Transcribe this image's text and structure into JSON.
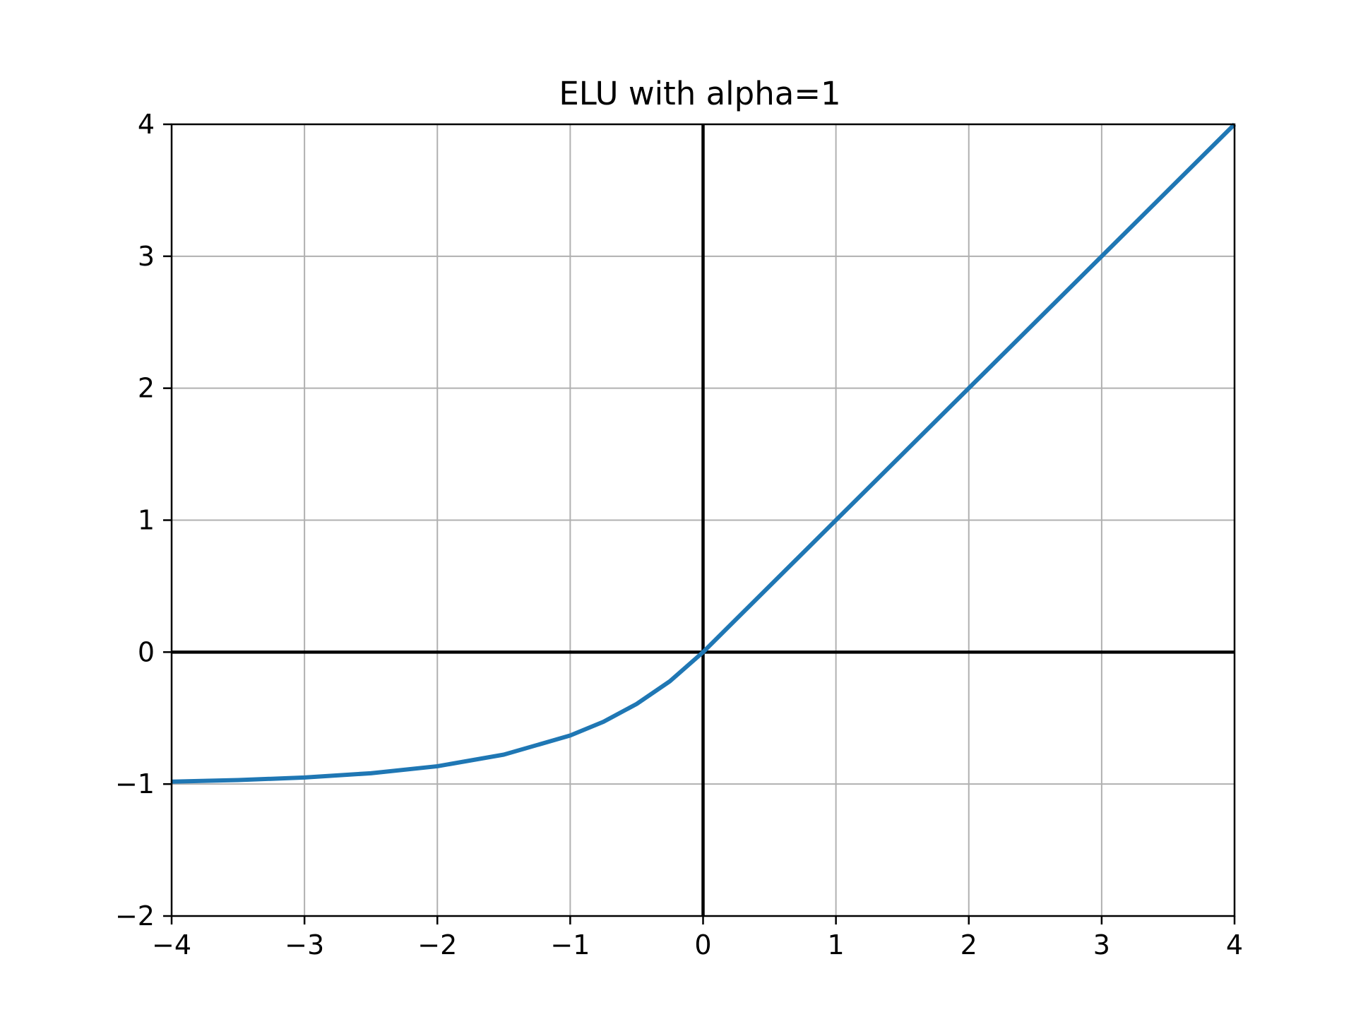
{
  "chart_data": {
    "type": "line",
    "title": "ELU with alpha=1",
    "xlabel": "",
    "ylabel": "",
    "xlim": [
      -4,
      4
    ],
    "ylim": [
      -2,
      4
    ],
    "x_ticks": [
      -4,
      -3,
      -2,
      -1,
      0,
      1,
      2,
      3,
      4
    ],
    "y_ticks": [
      -2,
      -1,
      0,
      1,
      2,
      3,
      4
    ],
    "x_tick_labels": [
      "−4",
      "−3",
      "−2",
      "−1",
      "0",
      "1",
      "2",
      "3",
      "4"
    ],
    "y_tick_labels": [
      "−2",
      "−1",
      "0",
      "1",
      "2",
      "3",
      "4"
    ],
    "grid": true,
    "reference_lines": {
      "x": 0,
      "y": 0
    },
    "colors": {
      "line": "#1f77b4",
      "grid": "#b0b0b0",
      "axes": "#000000",
      "reference": "#000000"
    },
    "series": [
      {
        "x": [
          -4,
          -3.5,
          -3,
          -2.5,
          -2,
          -1.5,
          -1,
          -0.75,
          -0.5,
          -0.25,
          0,
          1,
          2,
          3,
          4
        ],
        "y": [
          -0.982,
          -0.97,
          -0.95,
          -0.918,
          -0.865,
          -0.777,
          -0.632,
          -0.528,
          -0.393,
          -0.221,
          0,
          1,
          2,
          3,
          4
        ]
      }
    ]
  }
}
